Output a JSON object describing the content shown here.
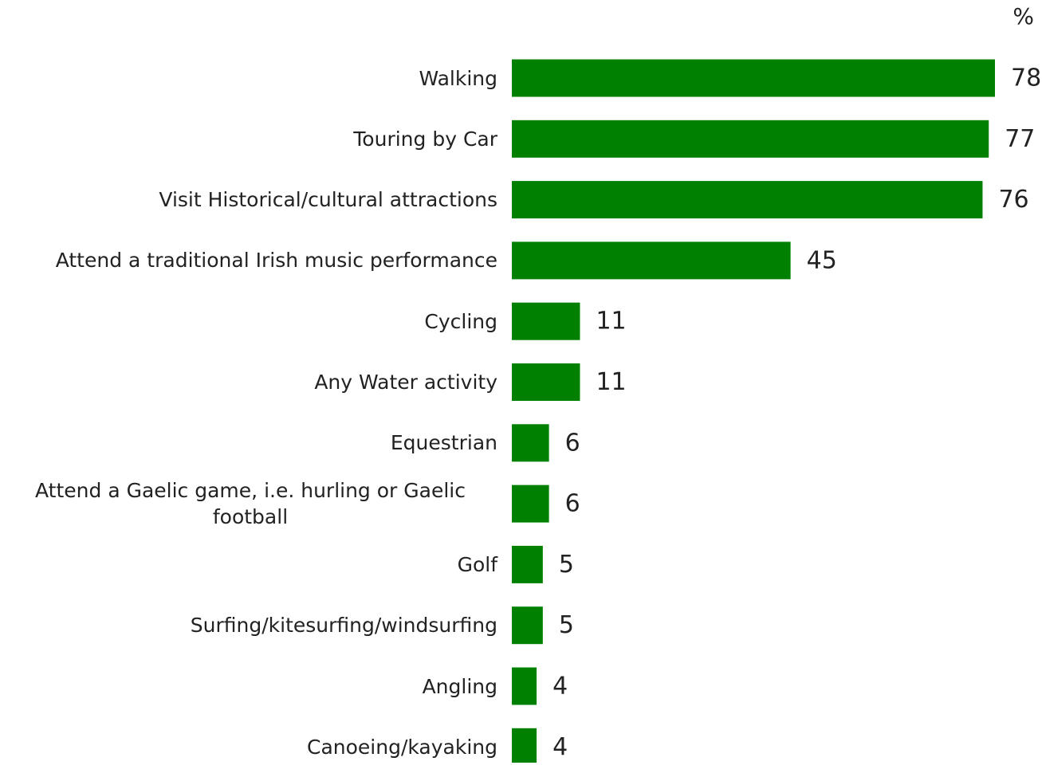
{
  "chart_data": {
    "type": "bar",
    "orientation": "horizontal",
    "unit": "%",
    "categories": [
      "Walking",
      "Touring by Car",
      "Visit Historical/cultural attractions",
      "Attend a traditional Irish music performance",
      "Cycling",
      "Any Water activity",
      "Equestrian",
      "Attend a Gaelic game, i.e. hurling or Gaelic football",
      "Golf",
      "Surfing/kitesurfing/windsurfing",
      "Angling",
      "Canoeing/kayaking"
    ],
    "values": [
      78,
      77,
      76,
      45,
      11,
      11,
      6,
      6,
      5,
      5,
      4,
      4
    ],
    "color": "#008000"
  }
}
